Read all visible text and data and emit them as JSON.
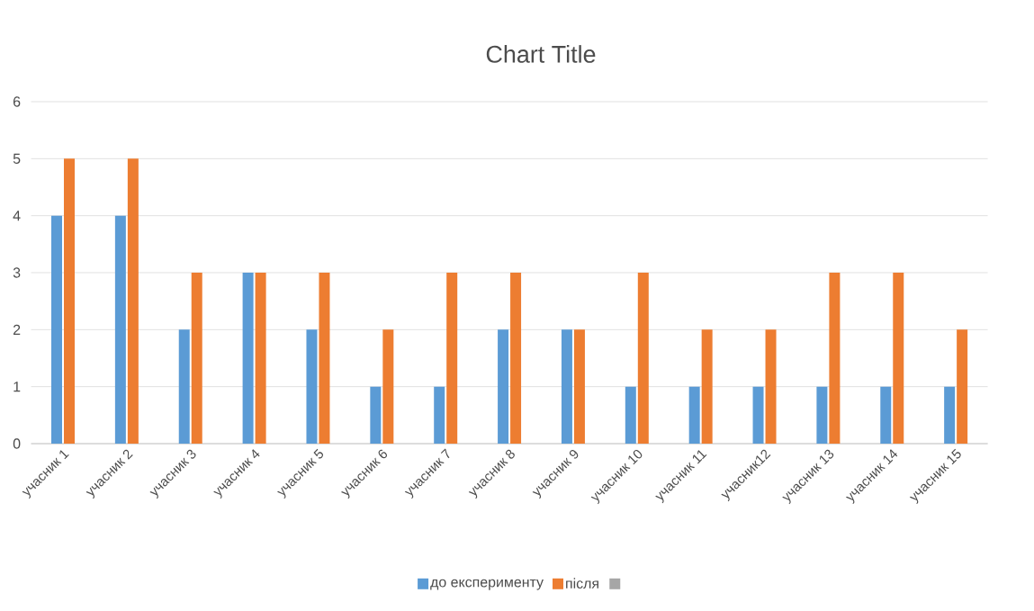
{
  "chart_data": {
    "type": "bar",
    "title": "Chart Title",
    "categories": [
      "учасник 1",
      "учасник 2",
      "учасник 3",
      "учасник 4",
      "учасник 5",
      "учасник 6",
      "учасник 7",
      "учасник 8",
      "учасник 9",
      "учасник 10",
      "учасник 11",
      "учасник12",
      "учасник 13",
      "учасник 14",
      "учасник 15"
    ],
    "series": [
      {
        "name": "до експерименту",
        "color": "#5b9bd5",
        "values": [
          4,
          4,
          2,
          3,
          2,
          1,
          1,
          2,
          2,
          1,
          1,
          1,
          1,
          1,
          1
        ]
      },
      {
        "name": "після",
        "color": "#ed7d31",
        "values": [
          5,
          5,
          3,
          3,
          3,
          2,
          3,
          3,
          2,
          3,
          2,
          2,
          3,
          3,
          2
        ]
      }
    ],
    "ylim": [
      0,
      6
    ],
    "yticks": [
      0,
      1,
      2,
      3,
      4,
      5,
      6
    ],
    "grid": "y",
    "legend": "bottom"
  }
}
